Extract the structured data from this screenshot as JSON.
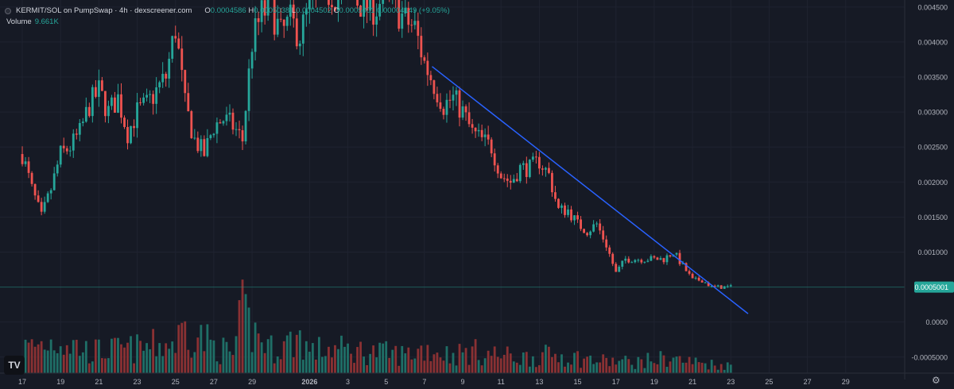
{
  "legend": {
    "pair": "KERMIT/SOL on PumpSwap · 4h · dexscreener.com",
    "o_label": "O",
    "o_value": "0.0004586",
    "h_label": "H",
    "h_value": "0.0005038",
    "l_label": "L",
    "l_value": "0.0004502",
    "c_label": "C",
    "c_value": "0.0005001",
    "change": "0.00004149 (+9.05%)",
    "volume_label": "Volume",
    "volume_value": "9.661K"
  },
  "logo_text": "TV",
  "icons": {
    "settings": "gear-icon",
    "logo": "tradingview-logo-icon"
  },
  "colors": {
    "background": "#161a25",
    "up": "#26a69a",
    "down": "#ef5350",
    "trendline": "#2962ff",
    "grid": "#1f2330",
    "price_line": "#26a69a"
  },
  "chart_data": {
    "type": "candlestick",
    "interval": "4h",
    "y_axis": {
      "ticks": [
        "0.004500",
        "0.004000",
        "0.003500",
        "0.003000",
        "0.002500",
        "0.002000",
        "0.001500",
        "0.001000",
        "0.0000",
        "-0.0005000"
      ],
      "tick_values": [
        0.0045,
        0.004,
        0.0035,
        0.003,
        0.0025,
        0.002,
        0.0015,
        0.001,
        0.0,
        -0.0005
      ],
      "range": [
        -0.00082,
        0.0046
      ]
    },
    "x_axis": {
      "ticks": [
        "17",
        "19",
        "21",
        "23",
        "25",
        "27",
        "29",
        "2026",
        "3",
        "5",
        "7",
        "9",
        "11",
        "13",
        "15",
        "17",
        "19",
        "21",
        "23",
        "25",
        "27",
        "29"
      ],
      "tick_day_index": [
        0,
        2,
        4,
        6,
        8,
        10,
        12,
        15,
        17,
        19,
        21,
        23,
        25,
        27,
        29,
        31,
        33,
        35,
        37,
        39,
        41,
        43
      ],
      "range_days": [
        -0.5,
        45.5
      ]
    },
    "last_price": {
      "label": "0.0005001",
      "value": 0.0005001
    },
    "trendline": {
      "start": {
        "day": 21.4,
        "price": 0.00365
      },
      "end": {
        "day": 37.9,
        "price": 0.00012
      }
    },
    "volume_scale_max": 100,
    "price_path": [
      [
        0,
        0.0024
      ],
      [
        0.5,
        0.0019
      ],
      [
        1,
        0.0015
      ],
      [
        1.5,
        0.0019
      ],
      [
        2,
        0.0024
      ],
      [
        2.5,
        0.0025
      ],
      [
        3,
        0.0027
      ],
      [
        3.5,
        0.0031
      ],
      [
        4,
        0.0033
      ],
      [
        4.5,
        0.003
      ],
      [
        5,
        0.0032
      ],
      [
        5.5,
        0.0027
      ],
      [
        6,
        0.003
      ],
      [
        6.5,
        0.0031
      ],
      [
        7,
        0.0033
      ],
      [
        7.5,
        0.0035
      ],
      [
        8,
        0.0042
      ],
      [
        8.5,
        0.0031
      ],
      [
        9,
        0.0026
      ],
      [
        9.5,
        0.0024
      ],
      [
        10,
        0.0028
      ],
      [
        10.5,
        0.0029
      ],
      [
        11,
        0.0028
      ],
      [
        11.5,
        0.0026
      ],
      [
        12,
        0.004
      ],
      [
        12.5,
        0.0044
      ],
      [
        13,
        0.0045
      ],
      [
        13.5,
        0.0041
      ],
      [
        14,
        0.0043
      ],
      [
        14.5,
        0.0041
      ],
      [
        15,
        0.0045
      ],
      [
        16,
        0.0047
      ],
      [
        17,
        0.0047
      ],
      [
        18,
        0.0045
      ],
      [
        18.5,
        0.0045
      ],
      [
        19,
        0.0047
      ],
      [
        19.5,
        0.0045
      ],
      [
        20,
        0.0043
      ],
      [
        20.5,
        0.0042
      ],
      [
        21,
        0.0037
      ],
      [
        21.5,
        0.0034
      ],
      [
        22,
        0.0031
      ],
      [
        22.5,
        0.0032
      ],
      [
        23,
        0.003
      ],
      [
        23.5,
        0.0027
      ],
      [
        24,
        0.0026
      ],
      [
        24.5,
        0.0025
      ],
      [
        25,
        0.0021
      ],
      [
        25.5,
        0.002
      ],
      [
        26,
        0.0022
      ],
      [
        26.5,
        0.0022
      ],
      [
        27,
        0.0023
      ],
      [
        27.5,
        0.0021
      ],
      [
        28,
        0.0016
      ],
      [
        28.5,
        0.0016
      ],
      [
        29,
        0.0014
      ],
      [
        29.5,
        0.0013
      ],
      [
        30,
        0.0014
      ],
      [
        30.5,
        0.0011
      ],
      [
        31,
        0.0007
      ],
      [
        31.5,
        0.0009
      ],
      [
        32,
        0.0009
      ],
      [
        32.5,
        0.0009
      ],
      [
        33,
        0.0009
      ],
      [
        33.5,
        0.0009
      ],
      [
        34,
        0.001
      ],
      [
        34.5,
        0.0008
      ],
      [
        35,
        0.0006
      ],
      [
        35.5,
        0.0006
      ],
      [
        36,
        0.0005
      ],
      [
        36.5,
        0.0005
      ],
      [
        37,
        0.0005
      ]
    ],
    "volume_profile": [
      [
        0,
        40
      ],
      [
        2,
        55
      ],
      [
        3.5,
        35
      ],
      [
        6,
        40
      ],
      [
        8,
        50
      ],
      [
        8.5,
        75
      ],
      [
        10,
        45
      ],
      [
        11,
        30
      ],
      [
        11.5,
        95
      ],
      [
        12,
        70
      ],
      [
        13,
        40
      ],
      [
        14,
        50
      ],
      [
        14.5,
        60
      ],
      [
        15,
        35
      ],
      [
        16,
        40
      ],
      [
        18,
        35
      ],
      [
        20,
        30
      ],
      [
        21,
        40
      ],
      [
        22.5,
        30
      ],
      [
        23.5,
        35
      ],
      [
        26,
        25
      ],
      [
        28,
        30
      ],
      [
        29,
        25
      ],
      [
        30,
        20
      ],
      [
        32,
        18
      ],
      [
        33,
        22
      ],
      [
        34,
        25
      ],
      [
        34.5,
        20
      ],
      [
        36,
        15
      ],
      [
        37,
        12
      ]
    ]
  }
}
